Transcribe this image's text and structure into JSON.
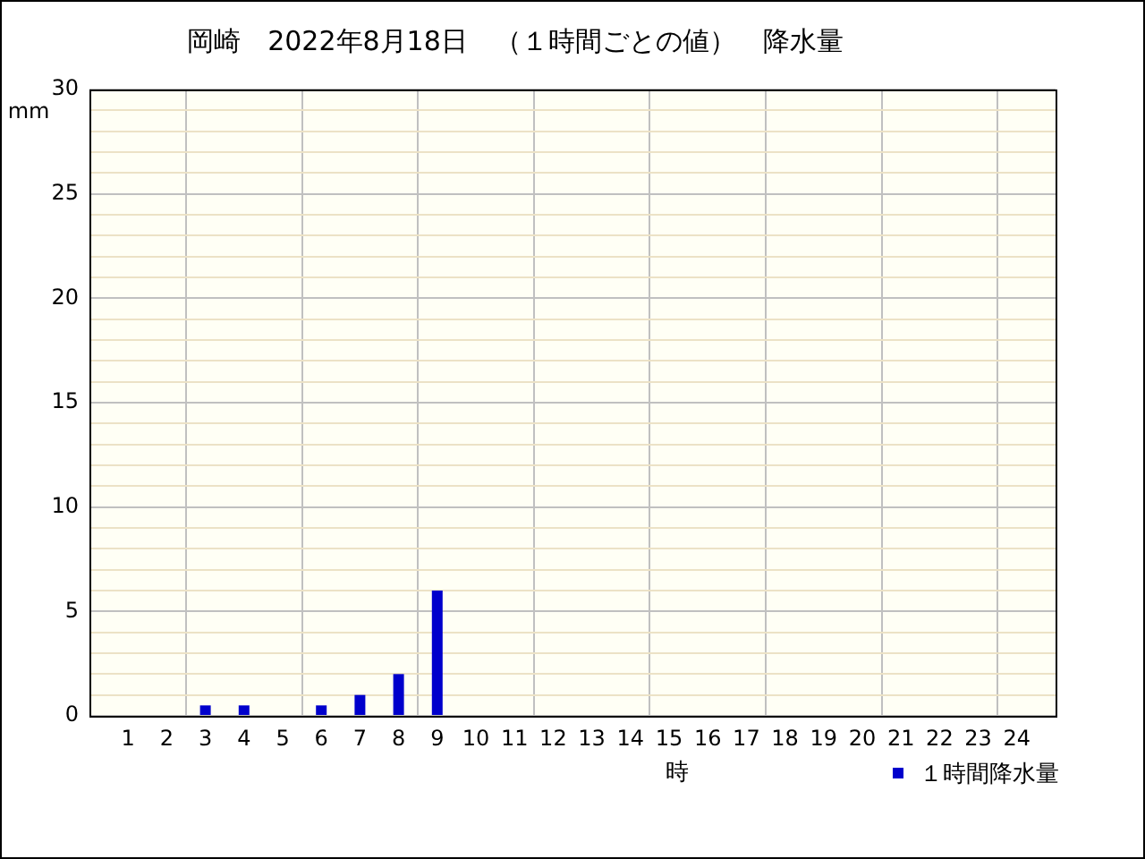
{
  "chart_data": {
    "type": "bar",
    "title": "岡崎　2022年8月18日　（１時間ごとの値）　降水量",
    "xlabel": "時",
    "ylabel": "mm",
    "x": [
      1,
      2,
      3,
      4,
      5,
      6,
      7,
      8,
      9,
      10,
      11,
      12,
      13,
      14,
      15,
      16,
      17,
      18,
      19,
      20,
      21,
      22,
      23,
      24
    ],
    "series": [
      {
        "name": "１時間降水量",
        "color": "#0000cc",
        "values": [
          0,
          0,
          0.5,
          0.5,
          0,
          0.5,
          1,
          2,
          6,
          0,
          0,
          0,
          0,
          0,
          0,
          0,
          0,
          0,
          0,
          0,
          0,
          0,
          0,
          0
        ]
      }
    ],
    "xlim": [
      0,
      25
    ],
    "xticks": [
      1,
      2,
      3,
      4,
      5,
      6,
      7,
      8,
      9,
      10,
      11,
      12,
      13,
      14,
      15,
      16,
      17,
      18,
      19,
      20,
      21,
      22,
      23,
      24
    ],
    "ylim": [
      0,
      30
    ],
    "yticks": [
      0,
      {
        "value": 1,
        "label": null
      },
      {
        "value": 2,
        "label": null
      },
      {
        "value": 3,
        "label": null
      },
      {
        "value": 4,
        "label": null
      },
      5,
      {
        "value": 6,
        "label": null
      },
      {
        "value": 7,
        "label": null
      },
      {
        "value": 8,
        "label": null
      },
      {
        "value": 9,
        "label": null
      },
      10,
      {
        "value": 11,
        "label": null
      },
      {
        "value": 12,
        "label": null
      },
      {
        "value": 13,
        "label": null
      },
      {
        "value": 14,
        "label": null
      },
      15,
      {
        "value": 16,
        "label": null
      },
      {
        "value": 17,
        "label": null
      },
      {
        "value": 18,
        "label": null
      },
      {
        "value": 19,
        "label": null
      },
      20,
      {
        "value": 21,
        "label": null
      },
      {
        "value": 22,
        "label": null
      },
      {
        "value": 23,
        "label": null
      },
      {
        "value": 24,
        "label": null
      },
      25,
      {
        "value": 26,
        "label": null
      },
      {
        "value": 27,
        "label": null
      },
      {
        "value": 28,
        "label": null
      },
      {
        "value": 29,
        "label": null
      },
      30
    ],
    "grid": true,
    "legend": "bottom right"
  }
}
